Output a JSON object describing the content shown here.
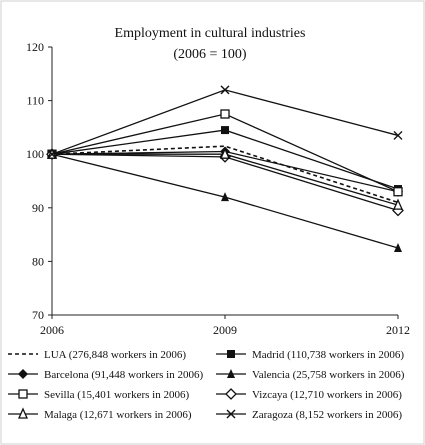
{
  "chart_data": {
    "type": "line",
    "title": "Employment in cultural industries",
    "subtitle": "(2006 = 100)",
    "xlabel": "",
    "ylabel": "",
    "x": [
      "2006",
      "2009",
      "2012"
    ],
    "ylim": [
      70,
      120
    ],
    "yticks": [
      "70",
      "80",
      "90",
      "100",
      "110",
      "120"
    ],
    "grid": false,
    "legend_position": "bottom",
    "series": [
      {
        "name": "LUA (276,848 workers in 2006)",
        "values": [
          100,
          101.5,
          91.0
        ],
        "marker": "none",
        "dash": "dashed"
      },
      {
        "name": "Madrid (110,738 workers in 2006)",
        "values": [
          100,
          104.5,
          93.5
        ],
        "marker": "square-filled",
        "dash": "solid"
      },
      {
        "name": "Barcelona (91,448 workers in 2006)",
        "values": [
          100,
          100.5,
          93.0
        ],
        "marker": "diamond-filled",
        "dash": "solid"
      },
      {
        "name": "Valencia (25,758 workers in 2006)",
        "values": [
          100,
          92.0,
          82.5
        ],
        "marker": "triangle-filled",
        "dash": "solid"
      },
      {
        "name": "Sevilla (15,401 workers in 2006)",
        "values": [
          100,
          107.5,
          93.0
        ],
        "marker": "square-open",
        "dash": "solid"
      },
      {
        "name": "Vizcaya (12,710 workers in 2006)",
        "values": [
          100,
          99.5,
          89.5
        ],
        "marker": "diamond-open",
        "dash": "solid"
      },
      {
        "name": "Malaga (12,671 workers in 2006)",
        "values": [
          100,
          100.0,
          90.5
        ],
        "marker": "triangle-open",
        "dash": "solid"
      },
      {
        "name": "Zaragoza (8,152 workers in 2006)",
        "values": [
          100,
          112.0,
          103.5
        ],
        "marker": "cross",
        "dash": "solid"
      }
    ]
  }
}
